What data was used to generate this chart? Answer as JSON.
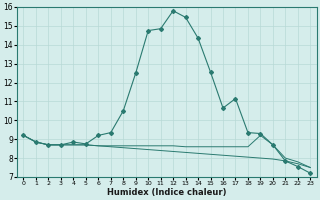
{
  "xlabel": "Humidex (Indice chaleur)",
  "x": [
    0,
    1,
    2,
    3,
    4,
    5,
    6,
    7,
    8,
    9,
    10,
    11,
    12,
    13,
    14,
    15,
    16,
    17,
    18,
    19,
    20,
    21,
    22,
    23
  ],
  "line1": [
    9.2,
    8.85,
    8.7,
    8.7,
    8.85,
    8.75,
    9.2,
    9.35,
    10.5,
    12.5,
    14.75,
    14.85,
    15.8,
    15.45,
    14.35,
    12.55,
    10.65,
    11.15,
    9.35,
    9.3,
    8.7,
    7.85,
    7.55,
    7.2
  ],
  "line2": [
    9.2,
    8.85,
    8.7,
    8.7,
    8.7,
    8.7,
    8.65,
    8.65,
    8.65,
    8.65,
    8.65,
    8.65,
    8.65,
    8.6,
    8.6,
    8.6,
    8.6,
    8.6,
    8.6,
    9.2,
    8.7,
    8.0,
    7.8,
    7.5
  ],
  "line3": [
    9.2,
    8.85,
    8.7,
    8.7,
    8.7,
    8.7,
    8.65,
    8.6,
    8.55,
    8.5,
    8.45,
    8.4,
    8.35,
    8.3,
    8.25,
    8.2,
    8.15,
    8.1,
    8.05,
    8.0,
    7.95,
    7.85,
    7.7,
    7.5
  ],
  "line_color": "#2a7a70",
  "bg_color": "#d5edeb",
  "grid_color": "#b8d9d6",
  "ylim": [
    7,
    16
  ],
  "xlim": [
    -0.5,
    23.5
  ],
  "yticks": [
    7,
    8,
    9,
    10,
    11,
    12,
    13,
    14,
    15,
    16
  ],
  "xticks": [
    0,
    1,
    2,
    3,
    4,
    5,
    6,
    7,
    8,
    9,
    10,
    11,
    12,
    13,
    14,
    15,
    16,
    17,
    18,
    19,
    20,
    21,
    22,
    23
  ]
}
